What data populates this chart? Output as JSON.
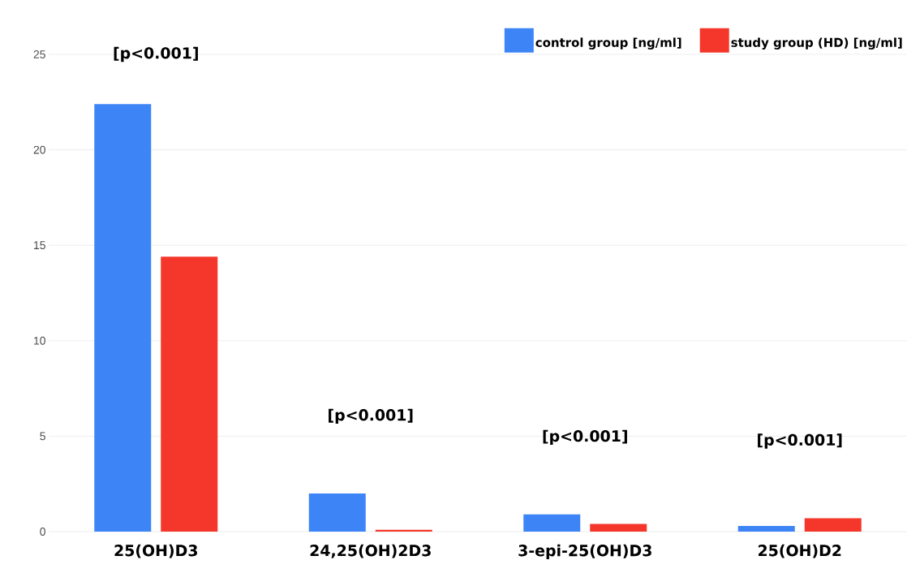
{
  "chart_data": {
    "type": "bar",
    "categories": [
      "25(OH)D3",
      "24,25(OH)2D3",
      "3-epi-25(OH)D3",
      "25(OH)D2"
    ],
    "series": [
      {
        "name": "control group [ng/ml]",
        "color": "#3d85f7",
        "values": [
          22.4,
          2.0,
          0.9,
          0.3
        ]
      },
      {
        "name": "study group (HD) [ng/ml]",
        "color": "#f4372a",
        "values": [
          14.4,
          0.1,
          0.4,
          0.7
        ]
      }
    ],
    "ylim": [
      0,
      25
    ],
    "yticks": [
      0,
      5,
      10,
      15,
      20,
      25
    ],
    "grid": "y",
    "legend": "top right",
    "annotations": [
      "[p<0.001]",
      "[p<0.001]",
      "[p<0.001]",
      "[p<0.001]"
    ]
  }
}
